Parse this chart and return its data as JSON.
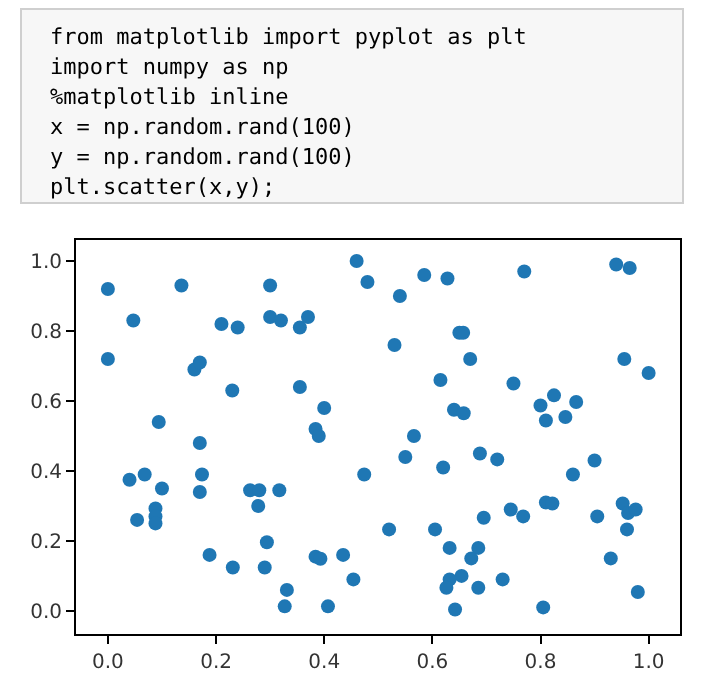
{
  "chart_data": {
    "type": "scatter",
    "annotations": [
      "from matplotlib import pyplot as plt",
      "import numpy as np",
      "%matplotlib inline",
      "x = np.random.rand(100)",
      "y = np.random.rand(100)",
      "plt.scatter(x,y);"
    ],
    "series": [
      {
        "color": "#1f77b4",
        "x": [
          0.0,
          0.136,
          0.3,
          0.48,
          0.047,
          0.21,
          0.24,
          0.3,
          0.32,
          0.355,
          0.37,
          0.0,
          0.16,
          0.17,
          0.23,
          0.355,
          0.4,
          0.094,
          0.384,
          0.39,
          0.17,
          0.04,
          0.068,
          0.174,
          0.474,
          0.1,
          0.17,
          0.263,
          0.28,
          0.317,
          0.278,
          0.088,
          0.088,
          0.088,
          0.054,
          0.188,
          0.231,
          0.29,
          0.294,
          0.384,
          0.393,
          0.435,
          0.454,
          0.331,
          0.327,
          0.407,
          0.46,
          0.585,
          0.628,
          0.77,
          0.94,
          0.965,
          0.54,
          0.53,
          0.65,
          0.657,
          0.67,
          0.615,
          0.75,
          0.955,
          1.0,
          0.64,
          0.658,
          0.8,
          0.825,
          0.866,
          0.81,
          0.846,
          0.566,
          0.55,
          0.688,
          0.72,
          0.62,
          0.9,
          0.86,
          0.52,
          0.605,
          0.632,
          0.685,
          0.672,
          0.654,
          0.632,
          0.626,
          0.685,
          0.642,
          0.73,
          0.805,
          0.695,
          0.745,
          0.768,
          0.81,
          0.822,
          0.905,
          0.93,
          0.952,
          0.962,
          0.976,
          0.96,
          0.98
        ],
        "values": [
          0.92,
          0.93,
          0.93,
          0.94,
          0.83,
          0.82,
          0.81,
          0.84,
          0.83,
          0.81,
          0.84,
          0.72,
          0.69,
          0.71,
          0.63,
          0.64,
          0.58,
          0.54,
          0.52,
          0.5,
          0.48,
          0.375,
          0.39,
          0.39,
          0.39,
          0.35,
          0.34,
          0.345,
          0.345,
          0.345,
          0.3,
          0.293,
          0.27,
          0.25,
          0.26,
          0.16,
          0.124,
          0.124,
          0.196,
          0.155,
          0.149,
          0.16,
          0.09,
          0.06,
          0.013,
          0.013,
          1.0,
          0.96,
          0.95,
          0.97,
          0.99,
          0.98,
          0.9,
          0.76,
          0.795,
          0.795,
          0.72,
          0.66,
          0.65,
          0.72,
          0.68,
          0.575,
          0.565,
          0.587,
          0.616,
          0.597,
          0.544,
          0.554,
          0.5,
          0.44,
          0.45,
          0.433,
          0.41,
          0.43,
          0.39,
          0.233,
          0.233,
          0.18,
          0.18,
          0.15,
          0.1,
          0.09,
          0.066,
          0.066,
          0.004,
          0.09,
          0.01,
          0.266,
          0.29,
          0.27,
          0.31,
          0.307,
          0.27,
          0.15,
          0.307,
          0.28,
          0.29,
          0.233,
          0.054
        ]
      }
    ],
    "xlim": [
      -0.059,
      1.058
    ],
    "ylim": [
      -0.066,
      1.06
    ],
    "xticks": [
      {
        "value": 0,
        "label": "0.0"
      },
      {
        "value": 0.2,
        "label": "0.2"
      },
      {
        "value": 0.4,
        "label": "0.4"
      },
      {
        "value": 0.6,
        "label": "0.6"
      },
      {
        "value": 0.8,
        "label": "0.8"
      },
      {
        "value": 1,
        "label": "1.0"
      }
    ],
    "yticks": [
      {
        "value": 0,
        "label": "0.0"
      },
      {
        "value": 0.2,
        "label": "0.2"
      },
      {
        "value": 0.4,
        "label": "0.4"
      },
      {
        "value": 0.6,
        "label": "0.6"
      },
      {
        "value": 0.8,
        "label": "0.8"
      },
      {
        "value": 1,
        "label": "1.0"
      }
    ],
    "marker": "circle"
  }
}
